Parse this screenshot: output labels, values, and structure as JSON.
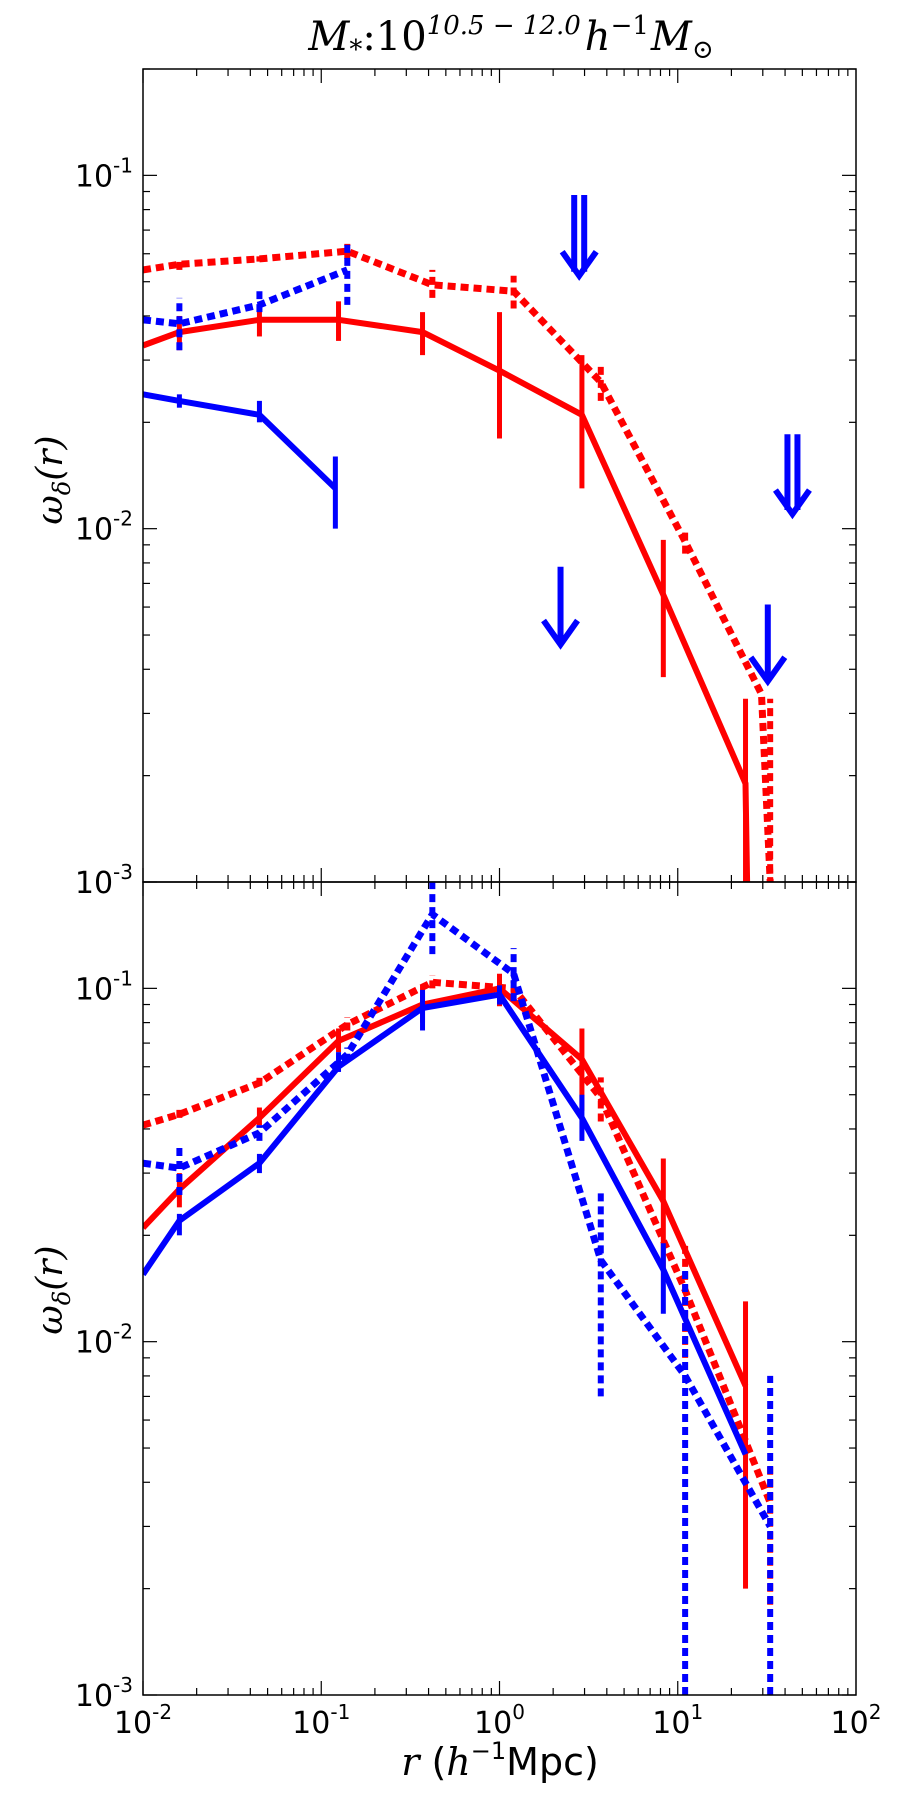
{
  "chart_data": {
    "title": "M_*:10^{10.5-12.0} h^{-1} M_⊙",
    "title_parts": {
      "main": "M",
      "sub1": "*",
      "colon": ":10",
      "exp": "10.5 − 12.0",
      "h": "h",
      "hexp": "−1",
      "msun": "M",
      "msub": "⊙"
    },
    "xlabel": "r (h^{-1}Mpc)",
    "xlabel_parts": {
      "r": "r",
      "open": " (",
      "h": "h",
      "hexp": "−1",
      "mpc": "Mpc)"
    },
    "x_scale": "log",
    "xlim": [
      0.01,
      100
    ],
    "x_ticks": [
      {
        "value": 0.01,
        "base": "10",
        "exp": "-2"
      },
      {
        "value": 0.1,
        "base": "10",
        "exp": "-1"
      },
      {
        "value": 1,
        "base": "10",
        "exp": "0"
      },
      {
        "value": 10,
        "base": "10",
        "exp": "1"
      },
      {
        "value": 100,
        "base": "10",
        "exp": "2"
      }
    ],
    "colors": {
      "red": "#ff0000",
      "blue": "#0000ff"
    },
    "panels": [
      {
        "type": "line",
        "y_scale": "log",
        "ylim": [
          0.001,
          0.2
        ],
        "ylabel": "ω_δ(r)",
        "ylabel_parts": {
          "omega": "ω",
          "sub": "δ",
          "rest": "(r)"
        },
        "y_ticks": [
          {
            "value": 0.1,
            "base": "10",
            "exp": "-1"
          },
          {
            "value": 0.01,
            "base": "10",
            "exp": "-2"
          },
          {
            "value": 0.001,
            "base": "10",
            "exp": "-3"
          }
        ],
        "series": [
          {
            "color": "#ff0000",
            "style": "solid",
            "x": [
              0.01,
              0.016,
              0.045,
              0.125,
              0.37,
              1.0,
              2.9,
              8.3,
              24.0,
              24.5
            ],
            "y": [
              0.033,
              0.036,
              0.039,
              0.039,
              0.036,
              0.028,
              0.021,
              0.0065,
              0.0019,
              0.001
            ],
            "err": [
              null,
              [
                0.032,
                0.04
              ],
              [
                0.035,
                0.043
              ],
              [
                0.034,
                0.044
              ],
              [
                0.031,
                0.041
              ],
              [
                0.018,
                0.041
              ],
              [
                0.013,
                0.031
              ],
              [
                0.0038,
                0.0093
              ],
              [
                0.0009,
                0.0033
              ],
              null
            ]
          },
          {
            "color": "#ff0000",
            "style": "dotted",
            "x": [
              0.01,
              0.016,
              0.045,
              0.14,
              0.42,
              1.2,
              3.7,
              11.0,
              29.5,
              33.0
            ],
            "y": [
              0.054,
              0.056,
              0.058,
              0.061,
              0.049,
              0.047,
              0.026,
              0.0092,
              0.0034,
              0.001
            ],
            "err": [
              null,
              [
                0.054,
                0.058
              ],
              [
                0.057,
                0.059
              ],
              [
                0.058,
                0.064
              ],
              [
                0.045,
                0.054
              ],
              [
                0.042,
                0.052
              ],
              [
                0.023,
                0.029
              ],
              [
                0.0085,
                0.0099
              ],
              null,
              [
                0.0009,
                0.0033
              ]
            ]
          },
          {
            "color": "#0000ff",
            "style": "solid",
            "x": [
              0.01,
              0.016,
              0.045,
              0.12
            ],
            "y": [
              0.024,
              0.023,
              0.021,
              0.013
            ],
            "err": [
              null,
              [
                0.022,
                0.024
              ],
              [
                0.02,
                0.023
              ],
              [
                0.01,
                0.016
              ]
            ]
          },
          {
            "color": "#0000ff",
            "style": "dotted",
            "x": [
              0.01,
              0.016,
              0.045,
              0.14
            ],
            "y": [
              0.039,
              0.038,
              0.043,
              0.054
            ],
            "err": [
              null,
              [
                0.032,
                0.045
              ],
              [
                0.041,
                0.047
              ],
              [
                0.043,
                0.065
              ]
            ]
          }
        ],
        "upper_limit_arrows": [
          {
            "color": "#0000ff",
            "x": 2.8,
            "y_top": 0.088,
            "y_tip": 0.052,
            "double": true
          },
          {
            "color": "#0000ff",
            "x": 44.0,
            "y_top": 0.0185,
            "y_tip": 0.011,
            "double": true
          },
          {
            "color": "#0000ff",
            "x": 2.2,
            "y_top": 0.0078,
            "y_tip": 0.0047,
            "double": false
          },
          {
            "color": "#0000ff",
            "x": 32.0,
            "y_top": 0.0061,
            "y_tip": 0.0037,
            "double": false
          }
        ]
      },
      {
        "type": "line",
        "y_scale": "log",
        "ylim": [
          0.001,
          0.2
        ],
        "ylabel": "ω_δ(r)",
        "ylabel_parts": {
          "omega": "ω",
          "sub": "δ",
          "rest": "(r)"
        },
        "y_ticks": [
          {
            "value": 0.1,
            "base": "10",
            "exp": "-1"
          },
          {
            "value": 0.01,
            "base": "10",
            "exp": "-2"
          },
          {
            "value": 0.001,
            "base": "10",
            "exp": "-3"
          }
        ],
        "series": [
          {
            "color": "#ff0000",
            "style": "solid",
            "x": [
              0.01,
              0.016,
              0.045,
              0.125,
              0.37,
              1.0,
              2.9,
              8.3,
              24.0
            ],
            "y": [
              0.021,
              0.027,
              0.043,
              0.071,
              0.09,
              0.1,
              0.063,
              0.025,
              0.0075
            ],
            "err": [
              null,
              [
                0.024,
                0.03
              ],
              [
                0.041,
                0.046
              ],
              [
                0.066,
                0.077
              ],
              [
                0.08,
                0.102
              ],
              [
                0.089,
                0.11
              ],
              [
                0.045,
                0.077
              ],
              [
                0.016,
                0.033
              ],
              [
                0.002,
                0.013
              ]
            ]
          },
          {
            "color": "#ff0000",
            "style": "dotted",
            "x": [
              0.01,
              0.016,
              0.045,
              0.14,
              0.42,
              1.2,
              3.7,
              11.0,
              33.0
            ],
            "y": [
              0.041,
              0.044,
              0.054,
              0.079,
              0.104,
              0.1,
              0.049,
              0.014,
              0.0035
            ],
            "err": [
              null,
              [
                0.043,
                0.046
              ],
              [
                0.053,
                0.056
              ],
              [
                0.076,
                0.083
              ],
              [
                0.1,
                0.109
              ],
              [
                0.095,
                0.105
              ],
              [
                0.042,
                0.056
              ],
              [
                0.009,
                0.019
              ],
              [
                0.0018,
                0.0045
              ]
            ]
          },
          {
            "color": "#0000ff",
            "style": "solid",
            "x": [
              0.01,
              0.016,
              0.045,
              0.125,
              0.37,
              1.0,
              2.9,
              8.3,
              24.0
            ],
            "y": [
              0.0155,
              0.022,
              0.032,
              0.06,
              0.088,
              0.096,
              0.043,
              0.016,
              0.0048
            ],
            "err": [
              null,
              [
                0.02,
                0.023
              ],
              [
                0.03,
                0.034
              ],
              [
                0.058,
                0.066
              ],
              [
                0.076,
                0.099
              ],
              [
                0.09,
                0.102
              ],
              [
                0.037,
                0.05
              ],
              [
                0.012,
                0.019
              ],
              null
            ]
          },
          {
            "color": "#0000ff",
            "style": "dotted",
            "x": [
              0.01,
              0.016,
              0.045,
              0.14,
              0.42,
              1.2,
              3.7,
              11.0,
              33.0
            ],
            "y": [
              0.032,
              0.031,
              0.039,
              0.065,
              0.162,
              0.11,
              0.017,
              0.008,
              0.003
            ],
            "err": [
              null,
              [
                0.026,
                0.036
              ],
              [
                0.037,
                0.041
              ],
              [
                0.062,
                0.068
              ],
              [
                0.125,
                0.205
              ],
              [
                0.092,
                0.13
              ],
              [
                0.007,
                0.027
              ],
              [
                0.001,
                0.016
              ],
              [
                0.001,
                0.008
              ]
            ]
          }
        ]
      }
    ]
  }
}
